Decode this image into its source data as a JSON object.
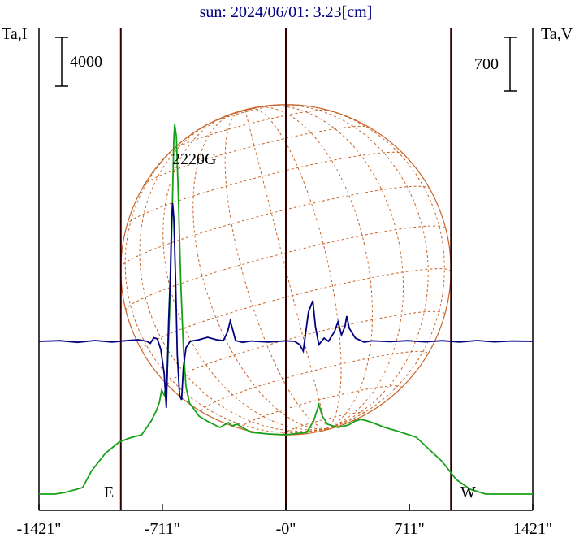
{
  "title": "sun: 2024/06/01: 3.23[cm]",
  "left_axis_label": "Ta,I",
  "right_axis_label": "Ta,V",
  "scale_left": "4000",
  "scale_right": "700",
  "east_label": "E",
  "west_label": "W",
  "annotation": "2220G",
  "x_ticks": [
    "-1421\"",
    "-711\"",
    "-0\"",
    "711\"",
    "1421\""
  ],
  "colors": {
    "intensity": "#18a018",
    "polarization": "#000080",
    "limb_lines": "#300000",
    "disk_grid": "#c86428",
    "title": "#000080"
  },
  "chart_data": {
    "type": "line",
    "x_unit": "arcsec",
    "xlim": [
      -1421,
      1421
    ],
    "x_ticks": [
      -1421,
      -711,
      0,
      711,
      1421
    ],
    "vertical_lines": [
      -950,
      0,
      950
    ],
    "solar_disk_radius_arcsec": 950,
    "series": [
      {
        "name": "Ta,I",
        "color": "#18a018",
        "points": [
          [
            -1421,
            0.0
          ],
          [
            -1330,
            0.0
          ],
          [
            -1270,
            0.02
          ],
          [
            -1170,
            0.08
          ],
          [
            -1120,
            0.28
          ],
          [
            -1040,
            0.5
          ],
          [
            -960,
            0.64
          ],
          [
            -900,
            0.69
          ],
          [
            -830,
            0.73
          ],
          [
            -775,
            0.9
          ],
          [
            -745,
            1.03
          ],
          [
            -728,
            1.13
          ],
          [
            -715,
            1.28
          ],
          [
            -700,
            1.22
          ],
          [
            -685,
            1.38
          ],
          [
            -670,
            2.2
          ],
          [
            -655,
            3.4
          ],
          [
            -645,
            4.36
          ],
          [
            -640,
            4.55
          ],
          [
            -630,
            4.4
          ],
          [
            -618,
            3.6
          ],
          [
            -605,
            2.6
          ],
          [
            -590,
            1.8
          ],
          [
            -575,
            1.32
          ],
          [
            -555,
            1.12
          ],
          [
            -530,
            1.05
          ],
          [
            -500,
            0.96
          ],
          [
            -455,
            0.9
          ],
          [
            -380,
            0.82
          ],
          [
            -330,
            0.88
          ],
          [
            -310,
            0.84
          ],
          [
            -280,
            0.86
          ],
          [
            -250,
            0.82
          ],
          [
            -200,
            0.76
          ],
          [
            -100,
            0.74
          ],
          [
            0,
            0.73
          ],
          [
            80,
            0.75
          ],
          [
            120,
            0.76
          ],
          [
            160,
            0.9
          ],
          [
            190,
            1.1
          ],
          [
            210,
            0.96
          ],
          [
            240,
            0.86
          ],
          [
            300,
            0.82
          ],
          [
            360,
            0.85
          ],
          [
            400,
            0.9
          ],
          [
            430,
            0.92
          ],
          [
            470,
            0.9
          ],
          [
            510,
            0.87
          ],
          [
            570,
            0.82
          ],
          [
            650,
            0.77
          ],
          [
            750,
            0.7
          ],
          [
            810,
            0.58
          ],
          [
            900,
            0.4
          ],
          [
            980,
            0.18
          ],
          [
            1060,
            0.06
          ],
          [
            1150,
            0.0
          ],
          [
            1421,
            0.0
          ]
        ]
      },
      {
        "name": "Ta,V",
        "color": "#000080",
        "points": [
          [
            -1421,
            0
          ],
          [
            -1300,
            4
          ],
          [
            -1200,
            -6
          ],
          [
            -1100,
            5
          ],
          [
            -1000,
            -4
          ],
          [
            -900,
            6
          ],
          [
            -850,
            10
          ],
          [
            -800,
            0
          ],
          [
            -780,
            -12
          ],
          [
            -760,
            22
          ],
          [
            -740,
            15
          ],
          [
            -720,
            -50
          ],
          [
            -700,
            -200
          ],
          [
            -688,
            -410
          ],
          [
            -675,
            120
          ],
          [
            -665,
            400
          ],
          [
            -658,
            720
          ],
          [
            -652,
            850
          ],
          [
            -645,
            760
          ],
          [
            -635,
            380
          ],
          [
            -625,
            -80
          ],
          [
            -612,
            -330
          ],
          [
            -600,
            -360
          ],
          [
            -590,
            -160
          ],
          [
            -575,
            -40
          ],
          [
            -550,
            0
          ],
          [
            -500,
            10
          ],
          [
            -450,
            25
          ],
          [
            -400,
            10
          ],
          [
            -360,
            4
          ],
          [
            -335,
            60
          ],
          [
            -320,
            125
          ],
          [
            -308,
            80
          ],
          [
            -290,
            5
          ],
          [
            -250,
            -6
          ],
          [
            -200,
            2
          ],
          [
            -100,
            -4
          ],
          [
            0,
            3
          ],
          [
            50,
            0
          ],
          [
            80,
            -20
          ],
          [
            100,
            -60
          ],
          [
            130,
            180
          ],
          [
            155,
            250
          ],
          [
            170,
            90
          ],
          [
            190,
            -20
          ],
          [
            220,
            20
          ],
          [
            245,
            0
          ],
          [
            280,
            60
          ],
          [
            300,
            120
          ],
          [
            320,
            40
          ],
          [
            340,
            90
          ],
          [
            350,
            155
          ],
          [
            365,
            80
          ],
          [
            400,
            20
          ],
          [
            450,
            -5
          ],
          [
            500,
            3
          ],
          [
            600,
            -2
          ],
          [
            700,
            4
          ],
          [
            800,
            -3
          ],
          [
            900,
            4
          ],
          [
            1000,
            -4
          ],
          [
            1100,
            5
          ],
          [
            1200,
            -3
          ],
          [
            1300,
            2
          ],
          [
            1421,
            0
          ]
        ]
      }
    ]
  }
}
